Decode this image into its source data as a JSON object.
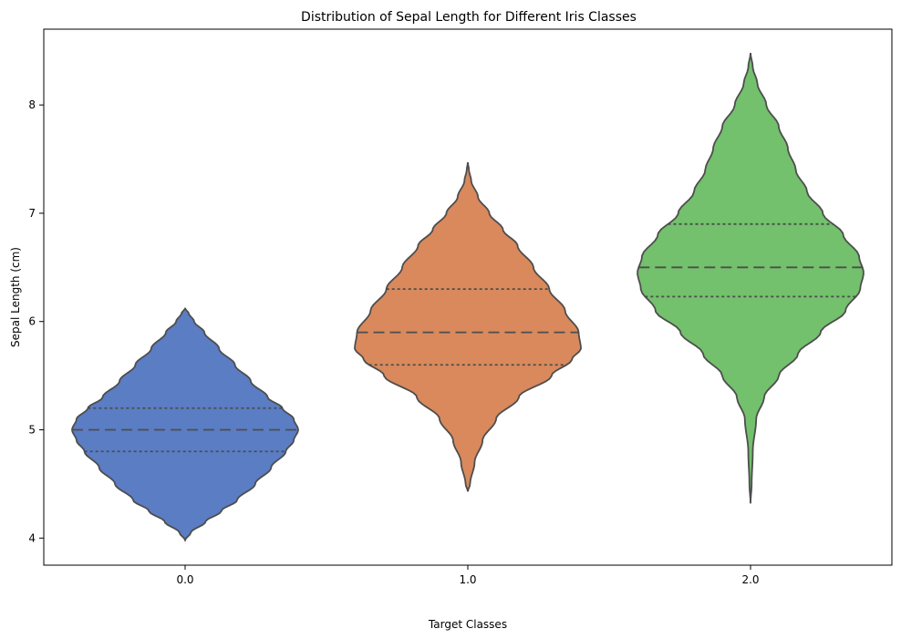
{
  "chart_data": {
    "type": "violin",
    "title": "Distribution of Sepal Length for Different Iris Classes",
    "xlabel": "Target Classes",
    "ylabel": "Sepal Length (cm)",
    "categories": [
      "0.0",
      "1.0",
      "2.0"
    ],
    "ylim": [
      3.75,
      8.7
    ],
    "yticks": [
      4,
      5,
      6,
      7,
      8
    ],
    "grid": false,
    "legend": "none",
    "inner": "quartile",
    "series": [
      {
        "category": "0.0",
        "color": "#5a7dc4",
        "q1": 4.8,
        "median": 5.0,
        "q3": 5.2,
        "min": 3.98,
        "max": 6.12,
        "profile": [
          [
            3.98,
            0.0
          ],
          [
            4.05,
            0.05
          ],
          [
            4.15,
            0.18
          ],
          [
            4.25,
            0.32
          ],
          [
            4.35,
            0.46
          ],
          [
            4.5,
            0.62
          ],
          [
            4.65,
            0.76
          ],
          [
            4.8,
            0.89
          ],
          [
            4.9,
            0.96
          ],
          [
            5.0,
            1.0
          ],
          [
            5.1,
            0.96
          ],
          [
            5.2,
            0.86
          ],
          [
            5.3,
            0.73
          ],
          [
            5.45,
            0.58
          ],
          [
            5.6,
            0.44
          ],
          [
            5.75,
            0.3
          ],
          [
            5.9,
            0.17
          ],
          [
            6.0,
            0.08
          ],
          [
            6.08,
            0.03
          ],
          [
            6.12,
            0.0
          ]
        ]
      },
      {
        "category": "1.0",
        "color": "#d9895c",
        "q1": 5.6,
        "median": 5.9,
        "q3": 6.3,
        "min": 4.43,
        "max": 7.47,
        "profile": [
          [
            4.43,
            0.0
          ],
          [
            4.5,
            0.02
          ],
          [
            4.7,
            0.06
          ],
          [
            4.9,
            0.13
          ],
          [
            5.1,
            0.25
          ],
          [
            5.3,
            0.45
          ],
          [
            5.5,
            0.74
          ],
          [
            5.65,
            0.92
          ],
          [
            5.75,
            1.0
          ],
          [
            5.9,
            0.98
          ],
          [
            6.1,
            0.86
          ],
          [
            6.3,
            0.72
          ],
          [
            6.5,
            0.58
          ],
          [
            6.7,
            0.44
          ],
          [
            6.85,
            0.31
          ],
          [
            7.0,
            0.19
          ],
          [
            7.15,
            0.09
          ],
          [
            7.3,
            0.03
          ],
          [
            7.4,
            0.01
          ],
          [
            7.47,
            0.0
          ]
        ]
      },
      {
        "category": "2.0",
        "color": "#73c06d",
        "q1": 6.23,
        "median": 6.5,
        "q3": 6.9,
        "min": 4.32,
        "max": 8.48,
        "profile": [
          [
            4.32,
            0.0
          ],
          [
            4.5,
            0.01
          ],
          [
            4.8,
            0.02
          ],
          [
            5.1,
            0.05
          ],
          [
            5.3,
            0.12
          ],
          [
            5.5,
            0.25
          ],
          [
            5.7,
            0.42
          ],
          [
            5.9,
            0.62
          ],
          [
            6.1,
            0.84
          ],
          [
            6.3,
            0.97
          ],
          [
            6.45,
            1.0
          ],
          [
            6.6,
            0.96
          ],
          [
            6.8,
            0.82
          ],
          [
            7.0,
            0.64
          ],
          [
            7.2,
            0.5
          ],
          [
            7.4,
            0.4
          ],
          [
            7.6,
            0.33
          ],
          [
            7.8,
            0.25
          ],
          [
            8.0,
            0.14
          ],
          [
            8.2,
            0.06
          ],
          [
            8.35,
            0.02
          ],
          [
            8.48,
            0.0
          ]
        ]
      }
    ]
  }
}
